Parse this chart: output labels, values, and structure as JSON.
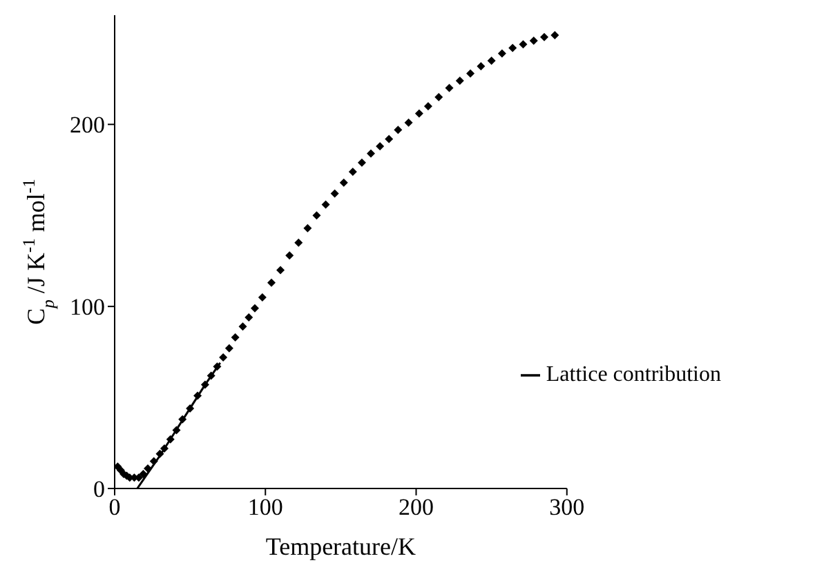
{
  "chart_data": {
    "type": "scatter",
    "xlabel": "Temperature/K",
    "ylabel": "C$_{p}$/J K$^{-1}$mol$^{-1}$",
    "xlim": [
      0,
      300
    ],
    "xticks": [
      0,
      100,
      200,
      300
    ],
    "ylim": [
      0,
      260
    ],
    "yticks": [
      0,
      100,
      200
    ],
    "legend": "right",
    "series": [
      {
        "marker": "diamond",
        "color": "#000000",
        "x": [
          2,
          4,
          6,
          8,
          10,
          13,
          16,
          19,
          22,
          26,
          30,
          33,
          37,
          41,
          45,
          50,
          55,
          60,
          64,
          68,
          72,
          76,
          80,
          85,
          89,
          93,
          98,
          104,
          110,
          116,
          122,
          128,
          134,
          140,
          146,
          152,
          158,
          164,
          170,
          176,
          182,
          188,
          195,
          202,
          208,
          215,
          222,
          229,
          236,
          243,
          250,
          257,
          264,
          271,
          278,
          285,
          292
        ],
        "values": [
          12,
          10,
          8,
          7,
          6,
          6,
          6,
          8,
          11,
          15,
          19,
          22,
          27,
          32,
          38,
          44,
          51,
          57,
          62,
          67,
          72,
          77,
          83,
          89,
          94,
          99,
          105,
          113,
          120,
          128,
          135,
          143,
          150,
          156,
          162,
          168,
          174,
          179,
          184,
          188,
          192,
          197,
          201,
          206,
          210,
          215,
          220,
          224,
          228,
          232,
          235,
          239,
          242,
          244,
          246,
          248,
          249
        ]
      },
      {
        "type": "line",
        "name": "Lattice contribution",
        "color": "#000000",
        "line_style": "solid",
        "marker": "none",
        "x": [
          15,
          20,
          25,
          30,
          40,
          50,
          60,
          70
        ],
        "values": [
          0,
          6,
          12,
          18,
          31,
          44,
          57,
          69
        ]
      }
    ]
  }
}
